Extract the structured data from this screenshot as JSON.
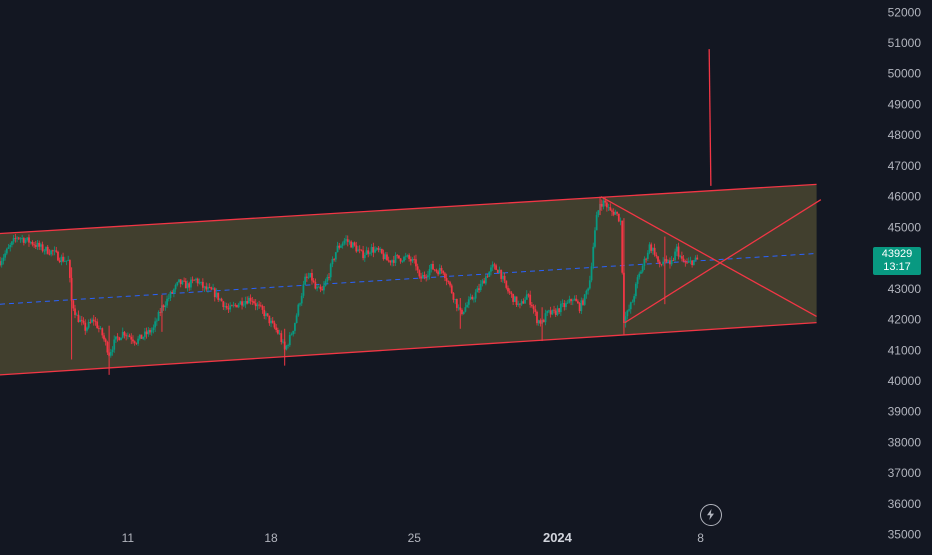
{
  "chart_data": {
    "type": "candlestick",
    "title": "",
    "xlabel": "",
    "ylabel": "",
    "ylim": [
      34500,
      52400
    ],
    "y_ticks": [
      35000,
      36000,
      37000,
      38000,
      39000,
      40000,
      41000,
      42000,
      43000,
      44000,
      45000,
      46000,
      47000,
      48000,
      49000,
      50000,
      51000,
      52000
    ],
    "x_axis_unit": "hours since Dec 11 00:00",
    "xlim": [
      -150,
      866
    ],
    "x_ticks": [
      {
        "t": 0,
        "label": "11"
      },
      {
        "t": 168,
        "label": "18"
      },
      {
        "t": 336,
        "label": "25"
      },
      {
        "t": 504,
        "label": "2024",
        "bold": true
      },
      {
        "t": 672,
        "label": "8"
      }
    ],
    "grid": false,
    "last_price": {
      "value": "43929",
      "countdown": "13:17",
      "color": "#089981"
    },
    "colors": {
      "up": "#089981",
      "down": "#f23645",
      "channel_fill": "#4a4630",
      "channel_line": "#f23645",
      "midline": "#2962ff",
      "background": "#131722"
    },
    "candle_anchors": [
      [
        -150,
        43900
      ],
      [
        -140,
        44300
      ],
      [
        -130,
        44700
      ],
      [
        -112,
        44500
      ],
      [
        -100,
        44300
      ],
      [
        -88,
        44200
      ],
      [
        -80,
        44000
      ],
      [
        -70,
        43900
      ],
      [
        -66,
        42600
      ],
      [
        -60,
        42100
      ],
      [
        -50,
        41700
      ],
      [
        -40,
        42000
      ],
      [
        -30,
        41500
      ],
      [
        -22,
        40900
      ],
      [
        -15,
        41300
      ],
      [
        -5,
        41600
      ],
      [
        10,
        41300
      ],
      [
        30,
        41700
      ],
      [
        40,
        42400
      ],
      [
        50,
        42800
      ],
      [
        60,
        43200
      ],
      [
        70,
        43100
      ],
      [
        80,
        43300
      ],
      [
        90,
        43000
      ],
      [
        100,
        42900
      ],
      [
        110,
        42600
      ],
      [
        118,
        42300
      ],
      [
        128,
        42500
      ],
      [
        135,
        42600
      ],
      [
        145,
        42700
      ],
      [
        150,
        42500
      ],
      [
        160,
        42200
      ],
      [
        170,
        41800
      ],
      [
        178,
        41500
      ],
      [
        184,
        41000
      ],
      [
        190,
        41400
      ],
      [
        195,
        41800
      ],
      [
        200,
        42400
      ],
      [
        208,
        43300
      ],
      [
        215,
        43400
      ],
      [
        220,
        43000
      ],
      [
        228,
        42900
      ],
      [
        236,
        43500
      ],
      [
        245,
        44300
      ],
      [
        255,
        44600
      ],
      [
        265,
        44400
      ],
      [
        275,
        44100
      ],
      [
        285,
        44300
      ],
      [
        295,
        44200
      ],
      [
        305,
        43900
      ],
      [
        315,
        44000
      ],
      [
        328,
        44000
      ],
      [
        338,
        43800
      ],
      [
        342,
        43300
      ],
      [
        350,
        43500
      ],
      [
        356,
        43700
      ],
      [
        362,
        43600
      ],
      [
        370,
        43600
      ],
      [
        376,
        43200
      ],
      [
        383,
        42700
      ],
      [
        390,
        42200
      ],
      [
        396,
        42400
      ],
      [
        404,
        42700
      ],
      [
        412,
        43000
      ],
      [
        420,
        43400
      ],
      [
        428,
        43700
      ],
      [
        436,
        43600
      ],
      [
        444,
        43000
      ],
      [
        452,
        42700
      ],
      [
        460,
        42400
      ],
      [
        468,
        42800
      ],
      [
        474,
        42500
      ],
      [
        480,
        42000
      ],
      [
        486,
        41900
      ],
      [
        492,
        42200
      ],
      [
        500,
        42200
      ],
      [
        508,
        42400
      ],
      [
        516,
        42500
      ],
      [
        522,
        42700
      ],
      [
        530,
        42400
      ],
      [
        536,
        42700
      ],
      [
        542,
        43300
      ],
      [
        546,
        44400
      ],
      [
        550,
        45300
      ],
      [
        554,
        45800
      ],
      [
        560,
        45800
      ],
      [
        566,
        45500
      ],
      [
        572,
        45500
      ],
      [
        578,
        45200
      ],
      [
        582,
        42000
      ],
      [
        586,
        42200
      ],
      [
        592,
        42600
      ],
      [
        598,
        43300
      ],
      [
        606,
        43900
      ],
      [
        612,
        44400
      ],
      [
        618,
        44200
      ],
      [
        624,
        43700
      ],
      [
        630,
        44000
      ],
      [
        636,
        43700
      ],
      [
        644,
        44300
      ],
      [
        650,
        43900
      ],
      [
        656,
        43800
      ],
      [
        662,
        43900
      ],
      [
        668,
        43929
      ]
    ],
    "spikes": [
      {
        "t": -66,
        "low": 40700,
        "high": 43700
      },
      {
        "t": -22,
        "low": 40200,
        "high": 41800
      },
      {
        "t": 40,
        "low": 41600,
        "high": 42800
      },
      {
        "t": 184,
        "low": 40500,
        "high": 41700
      },
      {
        "t": 390,
        "low": 41700,
        "high": 42700
      },
      {
        "t": 486,
        "low": 41300,
        "high": 42400
      },
      {
        "t": 554,
        "low": 45400,
        "high": 46000
      },
      {
        "t": 582,
        "low": 41500,
        "high": 45300
      },
      {
        "t": 630,
        "low": 42500,
        "high": 44700
      }
    ],
    "drawings": {
      "channel_upper": {
        "from": [
          -150,
          44800
        ],
        "to": [
          808,
          46400
        ]
      },
      "channel_lower": {
        "from": [
          -150,
          40200
        ],
        "to": [
          808,
          41900
        ]
      },
      "channel_mid": {
        "from": [
          -150,
          42500
        ],
        "to": [
          808,
          44150
        ]
      },
      "triangle_upper": {
        "from": [
          555,
          46000
        ],
        "to": [
          808,
          42100
        ]
      },
      "triangle_lower": {
        "from": [
          583,
          41900
        ],
        "to": [
          813,
          45900
        ]
      },
      "vertical_ray": {
        "from": [
          684,
          46350
        ],
        "to": [
          682,
          50800
        ]
      }
    }
  }
}
